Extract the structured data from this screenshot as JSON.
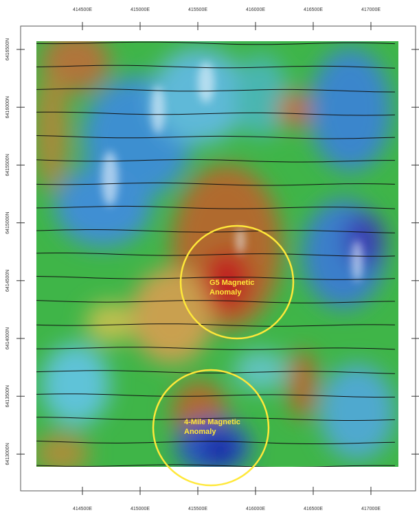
{
  "map": {
    "top_labels": [
      "414500E",
      "415000E",
      "415500E",
      "416000E",
      "416500E",
      "417000E"
    ],
    "bottom_labels": [
      "414500E",
      "415000E",
      "415500E",
      "416000E",
      "416500E",
      "417000E"
    ],
    "left_labels": [
      "6416500N",
      "6416000N",
      "6415500N",
      "6415000N",
      "6414500N",
      "6414000N",
      "6413500N",
      "6413000N"
    ],
    "annotations": [
      {
        "lines": [
          "G5 Magnetic",
          "Anomaly"
        ]
      },
      {
        "lines": [
          "4-Mile Magnetic",
          "Anomaly"
        ]
      }
    ]
  }
}
